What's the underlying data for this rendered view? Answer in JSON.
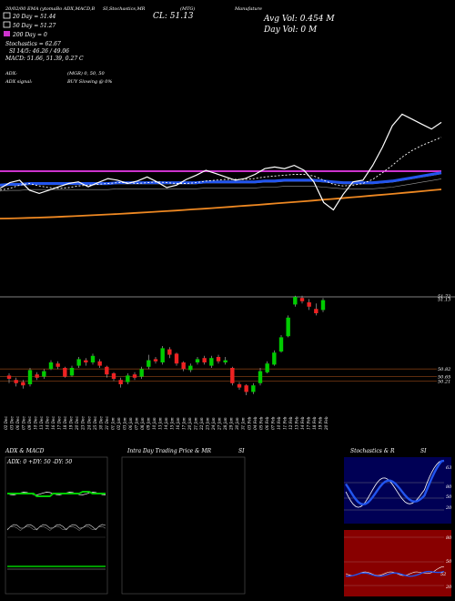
{
  "header": {
    "top_line": "20/02/00 EMA (ytomaBo ADX,MACD,B",
    "top_line_mid": "SI,Stochastics,MR",
    "top_line_sym": "(MTG)",
    "top_line_right": "Manufature",
    "cl": "CL: 51.13",
    "avg_vol": "Avg Vol: 0.454  M",
    "day_vol": "Day Vol: 0  M",
    "legend": [
      {
        "label": "20  Day = 51.44",
        "color": "#ffffff"
      },
      {
        "label": "50  Day = 51.27",
        "color": "#ffffff"
      },
      {
        "label": "200  Day = 0",
        "color": "#cc33cc"
      }
    ],
    "stochastics": "Stochastics = 62.67",
    "si": "SI 14/5: 46.26  / 49.06",
    "macd": "MACD: 51.66, 51.39, 0.27 C",
    "adx": "ADX:",
    "adx_signal": "ADX signal:",
    "mgr": "(MGR) 0, 50,  50",
    "buy": "BUY Slowing @ 0%"
  },
  "colors": {
    "up": "#00cc00",
    "down": "#ee2222",
    "ema_blue": "#2255ee",
    "ema_orange": "#ee8822",
    "magenta": "#cc33cc",
    "grid": "#3a1a10",
    "panel_rsi_bg": "#880000",
    "panel_stoch_bg": "#000055"
  },
  "chart_data": [
    {
      "type": "line",
      "panel": "ema",
      "series": [
        {
          "values": [
            50.2,
            50.9,
            51.2,
            50.0,
            49.6,
            50.0,
            50.4,
            50.8,
            51.0,
            50.4,
            50.9,
            51.4,
            51.2,
            50.8,
            51.1,
            51.6,
            51.0,
            50.3,
            50.6,
            51.3,
            51.8,
            52.4,
            52.0,
            51.6,
            51.2,
            51.4,
            51.9,
            52.6,
            52.8,
            52.6,
            53.0,
            52.4,
            51.0,
            48.5,
            47.6,
            49.5,
            51.0,
            51.2,
            53.0,
            55.2,
            57.8,
            59.2,
            58.6,
            58.0,
            57.4,
            58.2
          ]
        },
        {
          "values": [
            50.0,
            50.2,
            50.6,
            50.8,
            50.5,
            50.3,
            50.2,
            50.3,
            50.5,
            50.6,
            50.7,
            50.8,
            50.9,
            50.9,
            50.8,
            50.9,
            51.0,
            50.9,
            50.8,
            50.8,
            50.9,
            51.1,
            51.2,
            51.3,
            51.3,
            51.3,
            51.4,
            51.6,
            51.7,
            51.8,
            51.9,
            51.9,
            51.7,
            51.2,
            50.7,
            50.5,
            50.6,
            50.8,
            51.3,
            52.1,
            53.0,
            54.0,
            54.8,
            55.4,
            55.9,
            56.4
          ]
        },
        {
          "values": [
            50.6,
            50.7,
            50.7,
            50.8,
            50.8,
            50.8,
            50.8,
            50.8,
            50.8,
            50.8,
            50.8,
            50.8,
            50.9,
            50.9,
            50.9,
            50.9,
            50.9,
            50.9,
            50.9,
            50.9,
            50.9,
            51.0,
            51.0,
            51.0,
            51.0,
            51.0,
            51.0,
            51.1,
            51.1,
            51.2,
            51.2,
            51.2,
            51.2,
            51.1,
            51.0,
            50.9,
            50.9,
            50.9,
            50.9,
            51.0,
            51.1,
            51.3,
            51.5,
            51.7,
            51.9,
            52.1
          ]
        }
      ]
    },
    {
      "type": "bar",
      "panel": "candles",
      "candles": [
        {
          "o": 50.3,
          "c": 50.0,
          "h": 50.5,
          "l": 49.6
        },
        {
          "o": 49.9,
          "c": 49.6,
          "h": 50.1,
          "l": 49.3
        },
        {
          "o": 49.7,
          "c": 49.4,
          "h": 49.9,
          "l": 49.1
        },
        {
          "o": 49.5,
          "c": 50.8,
          "h": 51.0,
          "l": 49.3
        },
        {
          "o": 50.4,
          "c": 50.1,
          "h": 50.6,
          "l": 49.9
        },
        {
          "o": 50.2,
          "c": 50.7,
          "h": 50.9,
          "l": 50.0
        },
        {
          "o": 50.9,
          "c": 51.5,
          "h": 51.7,
          "l": 50.8
        },
        {
          "o": 51.4,
          "c": 51.1,
          "h": 51.6,
          "l": 50.9
        },
        {
          "o": 51.0,
          "c": 50.2,
          "h": 51.1,
          "l": 50.1
        },
        {
          "o": 50.3,
          "c": 51.0,
          "h": 51.2,
          "l": 50.2
        },
        {
          "o": 51.2,
          "c": 51.8,
          "h": 52.0,
          "l": 51.0
        },
        {
          "o": 51.7,
          "c": 51.5,
          "h": 51.9,
          "l": 51.2
        },
        {
          "o": 51.5,
          "c": 52.1,
          "h": 52.3,
          "l": 51.3
        },
        {
          "o": 51.6,
          "c": 51.2,
          "h": 51.8,
          "l": 51.0
        },
        {
          "o": 51.1,
          "c": 50.4,
          "h": 51.2,
          "l": 50.1
        },
        {
          "o": 50.5,
          "c": 50.0,
          "h": 50.6,
          "l": 49.8
        },
        {
          "o": 49.9,
          "c": 49.5,
          "h": 50.1,
          "l": 49.2
        },
        {
          "o": 49.7,
          "c": 50.3,
          "h": 50.5,
          "l": 49.5
        },
        {
          "o": 50.4,
          "c": 50.1,
          "h": 50.6,
          "l": 49.9
        },
        {
          "o": 50.2,
          "c": 50.9,
          "h": 51.1,
          "l": 50.0
        },
        {
          "o": 51.1,
          "c": 51.7,
          "h": 52.2,
          "l": 50.9
        },
        {
          "o": 51.8,
          "c": 51.6,
          "h": 52.0,
          "l": 51.4
        },
        {
          "o": 51.5,
          "c": 52.8,
          "h": 53.0,
          "l": 51.3
        },
        {
          "o": 52.7,
          "c": 52.2,
          "h": 52.9,
          "l": 51.9
        },
        {
          "o": 52.3,
          "c": 51.4,
          "h": 52.4,
          "l": 51.2
        },
        {
          "o": 51.5,
          "c": 50.9,
          "h": 51.6,
          "l": 50.7
        },
        {
          "o": 50.8,
          "c": 51.2,
          "h": 51.4,
          "l": 50.6
        },
        {
          "o": 51.5,
          "c": 51.8,
          "h": 52.0,
          "l": 51.3
        },
        {
          "o": 51.9,
          "c": 51.5,
          "h": 52.1,
          "l": 51.3
        },
        {
          "o": 51.2,
          "c": 51.9,
          "h": 52.1,
          "l": 51.0
        },
        {
          "o": 52.0,
          "c": 51.6,
          "h": 52.2,
          "l": 51.4
        },
        {
          "o": 51.5,
          "c": 51.7,
          "h": 52.0,
          "l": 51.3
        },
        {
          "o": 51.0,
          "c": 49.6,
          "h": 51.1,
          "l": 49.4
        },
        {
          "o": 49.5,
          "c": 49.2,
          "h": 49.7,
          "l": 49.0
        },
        {
          "o": 49.4,
          "c": 48.8,
          "h": 49.5,
          "l": 48.5
        },
        {
          "o": 48.8,
          "c": 49.4,
          "h": 49.6,
          "l": 48.6
        },
        {
          "o": 49.6,
          "c": 50.7,
          "h": 51.0,
          "l": 49.4
        },
        {
          "o": 50.6,
          "c": 51.4,
          "h": 51.6,
          "l": 50.5
        },
        {
          "o": 51.3,
          "c": 52.4,
          "h": 52.6,
          "l": 51.2
        },
        {
          "o": 52.5,
          "c": 53.8,
          "h": 54.0,
          "l": 52.4
        },
        {
          "o": 53.9,
          "c": 55.6,
          "h": 55.8,
          "l": 53.8
        },
        {
          "o": 56.8,
          "c": 57.5,
          "h": 57.6,
          "l": 56.6
        },
        {
          "o": 57.4,
          "c": 57.1,
          "h": 57.6,
          "l": 56.9
        },
        {
          "o": 57.0,
          "c": 56.6,
          "h": 57.3,
          "l": 56.3
        },
        {
          "o": 56.4,
          "c": 56.0,
          "h": 56.9,
          "l": 55.8
        },
        {
          "o": 56.3,
          "c": 57.2,
          "h": 57.4,
          "l": 56.1
        }
      ],
      "price_labels": [
        "51.72",
        "51.13",
        "50.82",
        "50.65",
        "50.21"
      ],
      "price_levels": [
        57.6,
        57.3,
        50.9,
        50.2,
        49.8
      ]
    }
  ],
  "x_ticks": [
    "02 Dec",
    "03 Dec",
    "06 Dec",
    "07 Dec",
    "09 Dec",
    "10 Dec",
    "13 Dec",
    "14 Dec",
    "16 Dec",
    "17 Dec",
    "18 Dec",
    "19 Dec",
    "20 Dec",
    "23 Dec",
    "24 Dec",
    "25 Dec",
    "30 Dec",
    "31 Dec",
    "01 Jan",
    "02 Jan",
    "03 Jan",
    "06 Jan",
    "07 Jan",
    "08 Jan",
    "09 Jan",
    "10 Jan",
    "13 Jan",
    "14 Jan",
    "15 Jan",
    "16 Jan",
    "17 Jan",
    "20 Jan",
    "21 Jan",
    "22 Jan",
    "23 Jan",
    "24 Jan",
    "27 Jan",
    "28 Jan",
    "29 Jan",
    "30 Jan",
    "31 Jan",
    "03 Feb",
    "04 Feb",
    "05 Feb",
    "06 Feb",
    "07 Feb",
    "10 Feb",
    "11 Feb",
    "12 Feb",
    "13 Feb",
    "14 Feb",
    "17 Feb",
    "18 Feb",
    "19 Feb",
    "20 Feb"
  ],
  "panels": {
    "adx_title": "ADX  & MACD",
    "adx_label": "ADX: 0  +DY: 50  -DY: 50",
    "mr_title": "Intra  Day Trading Price  & MR",
    "mr_si": "SI",
    "stoch_title": "Stochastics & R",
    "stoch_si": "SI",
    "stoch_value": "63",
    "stoch_ticks": [
      "80",
      "50",
      "20"
    ],
    "rsi_ticks": [
      "80",
      "50",
      "20"
    ],
    "rsi_value": "52"
  }
}
